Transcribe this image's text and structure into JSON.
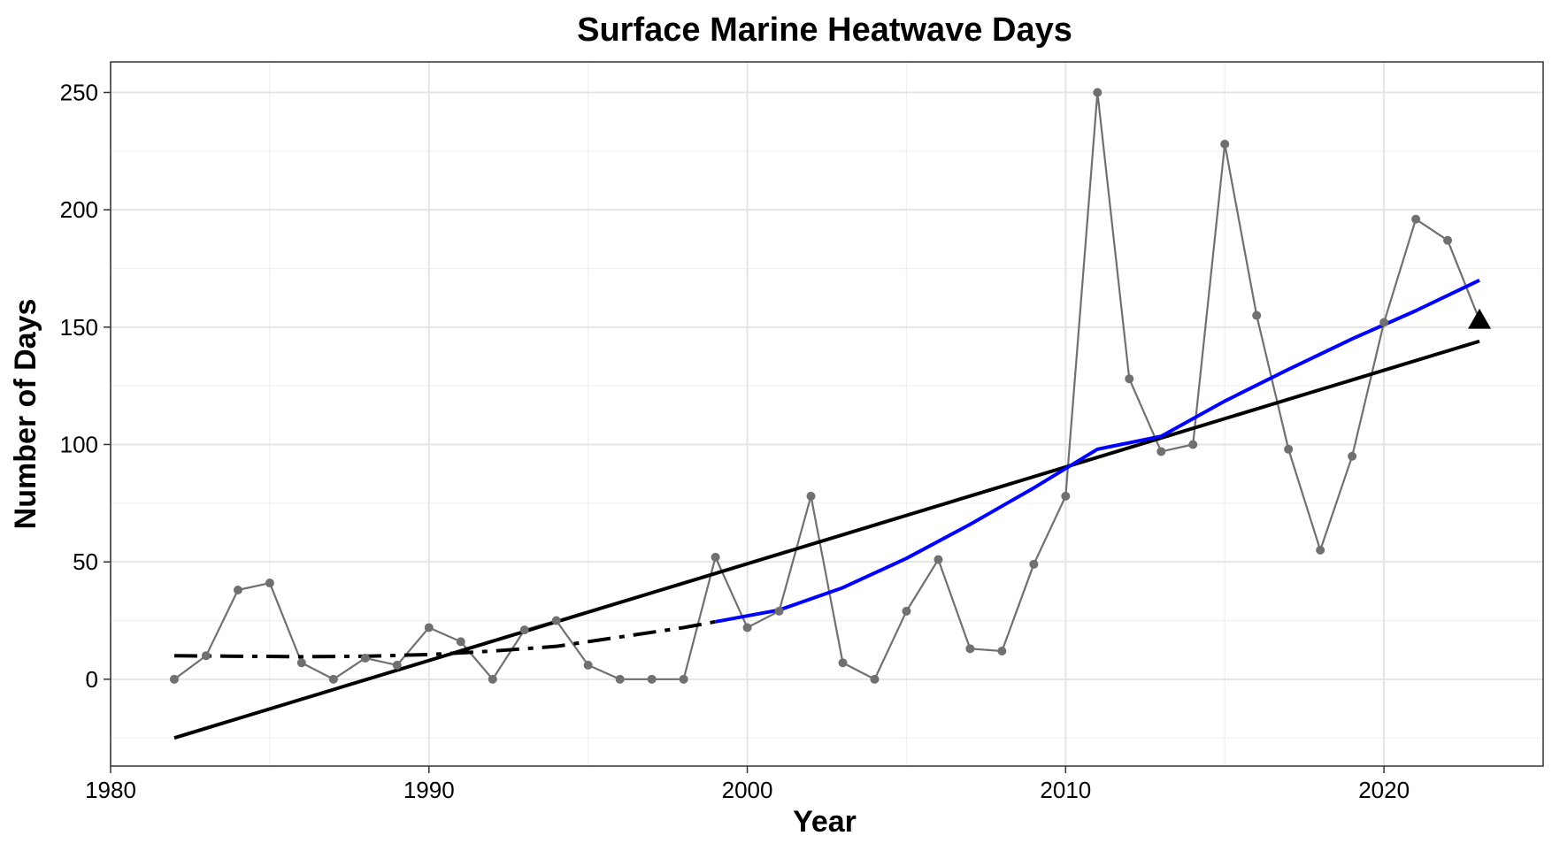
{
  "chart_data": {
    "type": "line",
    "title": "Surface Marine Heatwave Days",
    "xlabel": "Year",
    "ylabel": "Number of Days",
    "xlim": [
      1980,
      2025
    ],
    "ylim": [
      -37,
      263
    ],
    "x_ticks": [
      1980,
      1990,
      2000,
      2010,
      2020
    ],
    "y_ticks": [
      0,
      50,
      100,
      150,
      200,
      250
    ],
    "grid": true,
    "legend": "none",
    "colors": {
      "observed": "#707070",
      "linear_trend": "#000000",
      "smooth_early": "#000000",
      "smooth_late": "#0000ff",
      "latest_marker": "#000000"
    },
    "series": [
      {
        "style": "line-with-points",
        "x": [
          1982,
          1983,
          1984,
          1985,
          1986,
          1987,
          1988,
          1989,
          1990,
          1991,
          1992,
          1993,
          1994,
          1995,
          1996,
          1997,
          1998,
          1999,
          2000,
          2001,
          2002,
          2003,
          2004,
          2005,
          2006,
          2007,
          2008,
          2009,
          2010,
          2011,
          2012,
          2013,
          2014,
          2015,
          2016,
          2017,
          2018,
          2019,
          2020,
          2021,
          2022,
          2023
        ],
        "y": [
          0,
          10,
          38,
          41,
          7,
          0,
          9,
          6,
          22,
          16,
          0,
          21,
          25,
          6,
          0,
          0,
          0,
          52,
          22,
          29,
          78,
          7,
          0,
          29,
          51,
          13,
          12,
          49,
          78,
          250,
          128,
          97,
          100,
          228,
          155,
          98,
          55,
          95,
          152,
          196,
          187,
          153
        ]
      },
      {
        "style": "solid-line",
        "x": [
          1982,
          2023
        ],
        "y": [
          -25,
          144
        ]
      },
      {
        "style": "dash-dot-line",
        "x": [
          1982,
          1984,
          1986,
          1988,
          1990,
          1992,
          1994,
          1996,
          1998,
          1999
        ],
        "y": [
          10,
          9.8,
          9.6,
          9.8,
          10.5,
          12,
          14,
          18,
          22,
          24.5
        ]
      },
      {
        "style": "solid-line",
        "x": [
          1999,
          2001,
          2003,
          2005,
          2007,
          2009,
          2011,
          2013,
          2015,
          2017,
          2019,
          2021,
          2023
        ],
        "y": [
          24.5,
          29.5,
          39,
          51.5,
          66,
          81.5,
          98,
          103.5,
          118.5,
          132,
          145,
          157,
          170
        ]
      }
    ],
    "latest_marker": {
      "shape": "triangle",
      "x": 2023,
      "y": 153
    }
  }
}
